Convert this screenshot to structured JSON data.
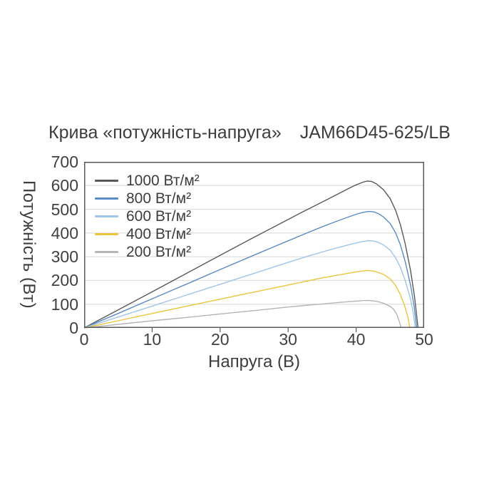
{
  "page": {
    "background": "#ffffff"
  },
  "title": {
    "left": "Крива «потужність-напруга»",
    "right": "JAM66D45-625/LB"
  },
  "chart_data": {
    "type": "line",
    "title": "Крива «потужність-напруга» JAM66D45-625/LB",
    "xlabel": "Напруга (В)",
    "ylabel": "Потужність (Вт)",
    "xlim": [
      0,
      50
    ],
    "ylim": [
      0,
      700
    ],
    "xticks": [
      0,
      10,
      20,
      30,
      40,
      50
    ],
    "yticks": [
      0,
      100,
      200,
      300,
      400,
      500,
      600,
      700
    ],
    "grid": "horizontal",
    "grid_color": "#d9d9d9",
    "axis_color": "#595959",
    "text_color": "#404040",
    "legend_position": "top-left-inside",
    "series": [
      {
        "name": "1000 Вт/м²",
        "color": "#595959",
        "peak": {
          "x": 41.6,
          "y": 619
        },
        "x_zero": 49.1,
        "points": [
          [
            0,
            0
          ],
          [
            5,
            76
          ],
          [
            10,
            152
          ],
          [
            15,
            229
          ],
          [
            20,
            306
          ],
          [
            25,
            382
          ],
          [
            28,
            427
          ],
          [
            30,
            457
          ],
          [
            32,
            487
          ],
          [
            34,
            516
          ],
          [
            36,
            545
          ],
          [
            38,
            574
          ],
          [
            39,
            589
          ],
          [
            40,
            603
          ],
          [
            41,
            614
          ],
          [
            41.6,
            619
          ],
          [
            42.3,
            617
          ],
          [
            43,
            607
          ],
          [
            44,
            583
          ],
          [
            45,
            545
          ],
          [
            45.8,
            496
          ],
          [
            46.5,
            436
          ],
          [
            47.2,
            356
          ],
          [
            48,
            242
          ],
          [
            48.6,
            130
          ],
          [
            49.1,
            0
          ]
        ]
      },
      {
        "name": "800 Вт/м²",
        "color": "#5b8bc5",
        "peak": {
          "x": 41.8,
          "y": 491
        },
        "x_zero": 48.9,
        "points": [
          [
            0,
            0
          ],
          [
            5,
            61
          ],
          [
            10,
            123
          ],
          [
            15,
            184
          ],
          [
            20,
            246
          ],
          [
            25,
            307
          ],
          [
            30,
            367
          ],
          [
            33,
            403
          ],
          [
            35,
            426
          ],
          [
            37,
            448
          ],
          [
            39,
            469
          ],
          [
            40,
            479
          ],
          [
            41,
            487
          ],
          [
            41.8,
            491
          ],
          [
            42.6,
            489
          ],
          [
            43.3,
            481
          ],
          [
            44,
            468
          ],
          [
            45,
            440
          ],
          [
            45.8,
            401
          ],
          [
            46.5,
            351
          ],
          [
            47.2,
            281
          ],
          [
            48,
            181
          ],
          [
            48.5,
            96
          ],
          [
            48.9,
            0
          ]
        ]
      },
      {
        "name": "600 Вт/м²",
        "color": "#9fc5e8",
        "peak": {
          "x": 41.8,
          "y": 368
        },
        "x_zero": 48.7,
        "points": [
          [
            0,
            0
          ],
          [
            5,
            46
          ],
          [
            10,
            92
          ],
          [
            15,
            138
          ],
          [
            20,
            184
          ],
          [
            25,
            230
          ],
          [
            30,
            276
          ],
          [
            33,
            303
          ],
          [
            35,
            320
          ],
          [
            37,
            336
          ],
          [
            39,
            351
          ],
          [
            40,
            358
          ],
          [
            41,
            364
          ],
          [
            41.8,
            368
          ],
          [
            42.6,
            366
          ],
          [
            43.3,
            360
          ],
          [
            44,
            350
          ],
          [
            45,
            328
          ],
          [
            45.8,
            296
          ],
          [
            46.5,
            256
          ],
          [
            47.2,
            201
          ],
          [
            48,
            122
          ],
          [
            48.4,
            62
          ],
          [
            48.7,
            0
          ]
        ]
      },
      {
        "name": "400 Вт/м²",
        "color": "#e9c63d",
        "peak": {
          "x": 41.7,
          "y": 242
        },
        "x_zero": 47.9,
        "points": [
          [
            0,
            0
          ],
          [
            5,
            30
          ],
          [
            10,
            61
          ],
          [
            15,
            91
          ],
          [
            20,
            121
          ],
          [
            25,
            151
          ],
          [
            30,
            181
          ],
          [
            33,
            199
          ],
          [
            35,
            211
          ],
          [
            37,
            221
          ],
          [
            39,
            231
          ],
          [
            40,
            236
          ],
          [
            41,
            240
          ],
          [
            41.7,
            242
          ],
          [
            42.4,
            240
          ],
          [
            43,
            236
          ],
          [
            44,
            226
          ],
          [
            45,
            207
          ],
          [
            45.8,
            179
          ],
          [
            46.5,
            141
          ],
          [
            47.1,
            96
          ],
          [
            47.6,
            46
          ],
          [
            47.9,
            0
          ]
        ]
      },
      {
        "name": "200 Вт/м²",
        "color": "#b5b5b5",
        "peak": {
          "x": 41.8,
          "y": 116
        },
        "x_zero": 46.6,
        "points": [
          [
            0,
            0
          ],
          [
            5,
            15
          ],
          [
            10,
            30
          ],
          [
            15,
            44
          ],
          [
            20,
            59
          ],
          [
            25,
            73
          ],
          [
            30,
            88
          ],
          [
            33,
            96
          ],
          [
            35,
            101
          ],
          [
            37,
            106
          ],
          [
            39,
            111
          ],
          [
            40,
            113
          ],
          [
            41,
            115
          ],
          [
            41.8,
            116
          ],
          [
            42.5,
            114
          ],
          [
            43.2,
            111
          ],
          [
            44,
            104
          ],
          [
            45,
            91
          ],
          [
            45.5,
            79
          ],
          [
            46,
            56
          ],
          [
            46.4,
            22
          ],
          [
            46.6,
            0
          ]
        ]
      }
    ]
  }
}
